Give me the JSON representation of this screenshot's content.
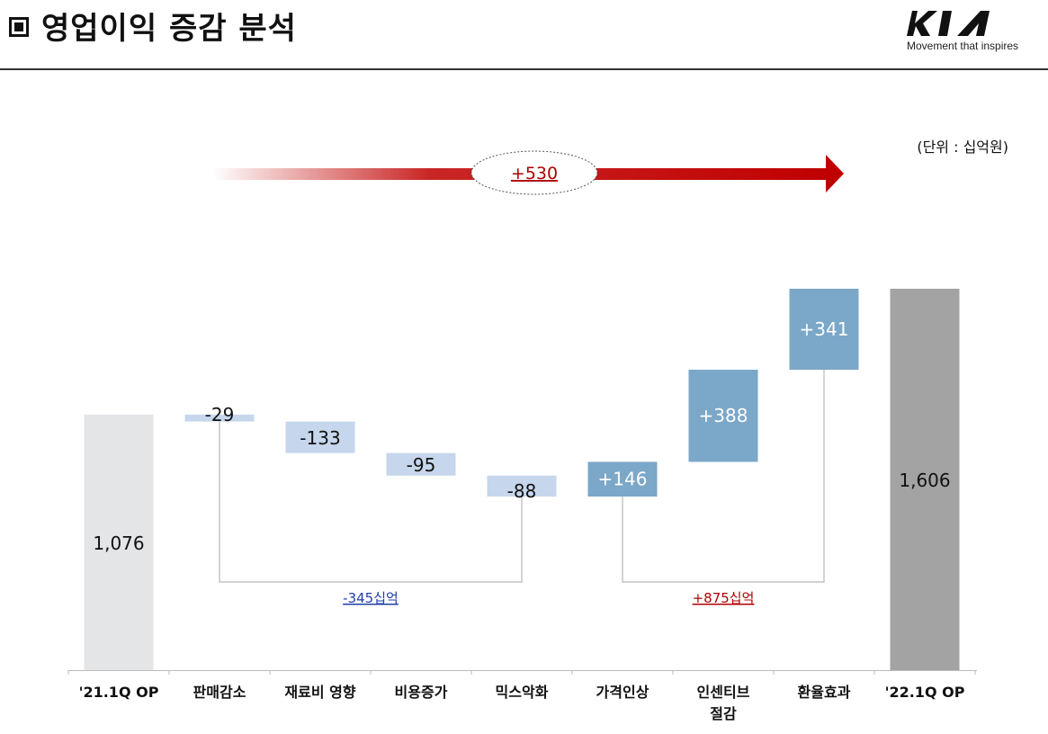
{
  "header": {
    "title": "영업이익 증감 분석",
    "logo_text": "KIA",
    "logo_tagline": "Movement that inspires"
  },
  "unit_label": "(단위 : 십억원)",
  "chart_data": {
    "type": "bar",
    "subtype": "waterfall",
    "title": "",
    "xlabel": "",
    "ylabel": "",
    "total_change_label": "+530",
    "categories": [
      "'21.1Q OP",
      "판매감소",
      "재료비 영향",
      "비용증가",
      "믹스악화",
      "가격인상",
      "인센티브 절감",
      "환율효과",
      "'22.1Q OP"
    ],
    "category_lines": [
      [
        "'21.1Q OP"
      ],
      [
        "판매감소"
      ],
      [
        "재료비 영향"
      ],
      [
        "비용증가"
      ],
      [
        "믹스악화"
      ],
      [
        "가격인상"
      ],
      [
        "인센티브",
        "절감"
      ],
      [
        "환율효과"
      ],
      [
        "'22.1Q OP"
      ]
    ],
    "values": [
      1076,
      -29,
      -133,
      -95,
      -88,
      146,
      388,
      341,
      1606
    ],
    "labels": [
      "1,076",
      "-29",
      "-133",
      "-95",
      "-88",
      "+146",
      "+388",
      "+341",
      "1,606"
    ],
    "kinds": [
      "total",
      "decrease",
      "decrease",
      "decrease",
      "decrease",
      "increase",
      "increase",
      "increase",
      "total"
    ],
    "groups": [
      {
        "label": "-345십억",
        "from": 1,
        "to": 4,
        "color": "#1f3fa8"
      },
      {
        "label": "+875십억",
        "from": 5,
        "to": 7,
        "color": "#b00000"
      }
    ],
    "colors": {
      "start_total": "#e4e5e7",
      "end_total": "#a3a3a3",
      "decrease": "#c6d6ec",
      "increase": "#7ba7c8",
      "arrow": "#c00000",
      "total_change_text": "#b00000"
    }
  }
}
